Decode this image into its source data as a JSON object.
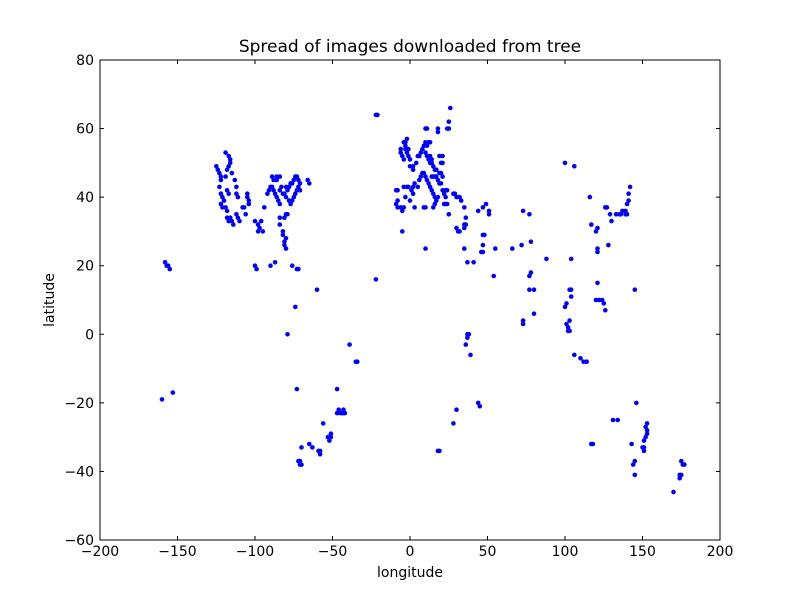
{
  "chart_data": {
    "type": "scatter",
    "title": "Spread of images downloaded from tree",
    "xlabel": "longitude",
    "ylabel": "latitude",
    "xlim": [
      -200,
      200
    ],
    "ylim": [
      -60,
      80
    ],
    "xticks": [
      -200,
      -150,
      -100,
      -50,
      0,
      50,
      100,
      150,
      200
    ],
    "yticks": [
      -60,
      -40,
      -20,
      0,
      20,
      40,
      60,
      80
    ],
    "grid": false,
    "marker_color": "#0000ff",
    "points": [
      [
        -125,
        49
      ],
      [
        -124,
        48
      ],
      [
        -123,
        47
      ],
      [
        -122,
        46
      ],
      [
        -122,
        45
      ],
      [
        -123,
        43
      ],
      [
        -122,
        41
      ],
      [
        -121,
        40
      ],
      [
        -122,
        38
      ],
      [
        -121,
        37
      ],
      [
        -120,
        39
      ],
      [
        -119,
        37
      ],
      [
        -118,
        36
      ],
      [
        -118,
        34
      ],
      [
        -117,
        33
      ],
      [
        -116,
        34
      ],
      [
        -117,
        41
      ],
      [
        -118,
        42
      ],
      [
        -119,
        46
      ],
      [
        -118,
        48
      ],
      [
        -117,
        49
      ],
      [
        -116,
        50
      ],
      [
        -115,
        47
      ],
      [
        -113,
        45
      ],
      [
        -112,
        43
      ],
      [
        -112,
        41
      ],
      [
        -111,
        40
      ],
      [
        -112,
        35
      ],
      [
        -111,
        34
      ],
      [
        -110,
        33
      ],
      [
        -115,
        33
      ],
      [
        -114,
        32
      ],
      [
        -119,
        53
      ],
      [
        -117,
        52
      ],
      [
        -116,
        51
      ],
      [
        -108,
        37
      ],
      [
        -105,
        40
      ],
      [
        -105,
        41
      ],
      [
        -104,
        39
      ],
      [
        -104,
        38
      ],
      [
        -106,
        35
      ],
      [
        -107,
        37
      ],
      [
        -100,
        33
      ],
      [
        -98,
        32
      ],
      [
        -98,
        30
      ],
      [
        -97,
        31
      ],
      [
        -96,
        33
      ],
      [
        -95,
        30
      ],
      [
        -94,
        37
      ],
      [
        -92,
        41
      ],
      [
        -91,
        42
      ],
      [
        -90,
        43
      ],
      [
        -89,
        43
      ],
      [
        -88,
        42
      ],
      [
        -87,
        41
      ],
      [
        -86,
        40
      ],
      [
        -85,
        39
      ],
      [
        -84,
        38
      ],
      [
        -84,
        42
      ],
      [
        -83,
        43
      ],
      [
        -82,
        41
      ],
      [
        -81,
        41
      ],
      [
        -80,
        43
      ],
      [
        -80,
        40
      ],
      [
        -79,
        42
      ],
      [
        -78,
        43
      ],
      [
        -78,
        39
      ],
      [
        -77,
        38
      ],
      [
        -76,
        39
      ],
      [
        -75,
        40
      ],
      [
        -74,
        41
      ],
      [
        -73,
        42
      ],
      [
        -72,
        43
      ],
      [
        -71,
        42
      ],
      [
        -71,
        44
      ],
      [
        -72,
        45
      ],
      [
        -73,
        46
      ],
      [
        -74,
        46
      ],
      [
        -75,
        45
      ],
      [
        -76,
        44
      ],
      [
        -77,
        44
      ],
      [
        -86,
        45
      ],
      [
        -88,
        45
      ],
      [
        -89,
        46
      ],
      [
        -86,
        46
      ],
      [
        -84,
        46
      ],
      [
        -80,
        35
      ],
      [
        -79,
        35
      ],
      [
        -81,
        34
      ],
      [
        -84,
        34
      ],
      [
        -84,
        32
      ],
      [
        -82,
        30
      ],
      [
        -81,
        27
      ],
      [
        -81,
        26
      ],
      [
        -80,
        28
      ],
      [
        -80,
        25
      ],
      [
        -82,
        29
      ],
      [
        -72,
        19
      ],
      [
        -73,
        19
      ],
      [
        -76,
        20
      ],
      [
        -90,
        20
      ],
      [
        -87,
        21
      ],
      [
        -100,
        20
      ],
      [
        -99,
        19
      ],
      [
        -66,
        45
      ],
      [
        -65,
        44
      ],
      [
        -79,
        0
      ],
      [
        -74,
        8
      ],
      [
        -60,
        13
      ],
      [
        -158,
        21
      ],
      [
        -157,
        20
      ],
      [
        -156,
        20
      ],
      [
        -155,
        19
      ],
      [
        -153,
        -17
      ],
      [
        -160,
        -19
      ],
      [
        -73,
        -16
      ],
      [
        -70,
        -33
      ],
      [
        -72,
        -37
      ],
      [
        -71,
        -37
      ],
      [
        -71,
        -38
      ],
      [
        -70,
        -38
      ],
      [
        -65,
        -32
      ],
      [
        -63,
        -33
      ],
      [
        -59,
        -34
      ],
      [
        -58,
        -35
      ],
      [
        -58,
        -34
      ],
      [
        -56,
        -26
      ],
      [
        -53,
        -30
      ],
      [
        -52,
        -31
      ],
      [
        -51,
        -29
      ],
      [
        -51,
        -30
      ],
      [
        -47,
        -16
      ],
      [
        -47,
        -23
      ],
      [
        -46,
        -22
      ],
      [
        -45,
        -23
      ],
      [
        -44,
        -23
      ],
      [
        -43,
        -23
      ],
      [
        -43,
        -22
      ],
      [
        -42,
        -23
      ],
      [
        -39,
        -3
      ],
      [
        -35,
        -8
      ],
      [
        -34,
        -8
      ],
      [
        -22,
        16
      ],
      [
        -21,
        64
      ],
      [
        -9,
        38
      ],
      [
        -8,
        37
      ],
      [
        -6,
        37
      ],
      [
        -5,
        36
      ],
      [
        -4,
        37
      ],
      [
        -3,
        40
      ],
      [
        -4,
        43
      ],
      [
        -2,
        43
      ],
      [
        -1,
        43
      ],
      [
        -5,
        30
      ],
      [
        -8,
        39
      ],
      [
        -8,
        42
      ],
      [
        -9,
        42
      ],
      [
        0,
        39
      ],
      [
        1,
        42
      ],
      [
        2,
        41
      ],
      [
        2,
        43
      ],
      [
        3,
        44
      ],
      [
        5,
        43
      ],
      [
        6,
        45
      ],
      [
        7,
        46
      ],
      [
        8,
        47
      ],
      [
        9,
        47
      ],
      [
        10,
        46
      ],
      [
        11,
        45
      ],
      [
        12,
        44
      ],
      [
        13,
        43
      ],
      [
        14,
        42
      ],
      [
        15,
        41
      ],
      [
        16,
        40
      ],
      [
        16,
        38
      ],
      [
        15,
        37
      ],
      [
        17,
        39
      ],
      [
        18,
        40
      ],
      [
        -3,
        54
      ],
      [
        -2,
        53
      ],
      [
        -1,
        52
      ],
      [
        0,
        51
      ],
      [
        -4,
        51
      ],
      [
        -5,
        52
      ],
      [
        -6,
        53
      ],
      [
        -6,
        54
      ],
      [
        -4,
        56
      ],
      [
        -3,
        56
      ],
      [
        -2,
        57
      ],
      [
        -3,
        55
      ],
      [
        -1,
        54
      ],
      [
        0,
        49
      ],
      [
        2,
        49
      ],
      [
        2,
        48
      ],
      [
        4,
        50
      ],
      [
        5,
        52
      ],
      [
        6,
        52
      ],
      [
        7,
        53
      ],
      [
        8,
        54
      ],
      [
        9,
        55
      ],
      [
        10,
        56
      ],
      [
        11,
        55
      ],
      [
        12,
        56
      ],
      [
        10,
        53
      ],
      [
        11,
        52
      ],
      [
        12,
        51
      ],
      [
        13,
        52
      ],
      [
        14,
        51
      ],
      [
        13,
        50
      ],
      [
        14,
        50
      ],
      [
        15,
        49
      ],
      [
        16,
        48
      ],
      [
        17,
        48
      ],
      [
        19,
        47
      ],
      [
        20,
        47
      ],
      [
        21,
        46
      ],
      [
        21,
        50
      ],
      [
        20,
        50
      ],
      [
        19,
        52
      ],
      [
        21,
        52
      ],
      [
        14,
        46
      ],
      [
        15,
        46
      ],
      [
        16,
        46
      ],
      [
        17,
        46
      ],
      [
        18,
        45
      ],
      [
        19,
        44
      ],
      [
        20,
        44
      ],
      [
        21,
        42
      ],
      [
        22,
        41
      ],
      [
        23,
        42
      ],
      [
        24,
        42
      ],
      [
        23,
        38
      ],
      [
        22,
        38
      ],
      [
        24,
        38
      ],
      [
        25,
        35
      ],
      [
        23,
        40
      ],
      [
        10,
        60
      ],
      [
        11,
        60
      ],
      [
        13,
        56
      ],
      [
        18,
        59
      ],
      [
        18,
        60
      ],
      [
        24,
        60
      ],
      [
        25,
        60
      ],
      [
        25,
        62
      ],
      [
        26,
        66
      ],
      [
        -22,
        64
      ],
      [
        10,
        37
      ],
      [
        9,
        37
      ],
      [
        3,
        37
      ],
      [
        10,
        25
      ],
      [
        30,
        40
      ],
      [
        28,
        41
      ],
      [
        29,
        41
      ],
      [
        32,
        40
      ],
      [
        33,
        39
      ],
      [
        35,
        37
      ],
      [
        30,
        31
      ],
      [
        31,
        30
      ],
      [
        32,
        30
      ],
      [
        36,
        34
      ],
      [
        36,
        32
      ],
      [
        35,
        32
      ],
      [
        35,
        31
      ],
      [
        35,
        25
      ],
      [
        38,
        0
      ],
      [
        37,
        0
      ],
      [
        37,
        -1
      ],
      [
        36,
        -3
      ],
      [
        39,
        -6
      ],
      [
        30,
        -22
      ],
      [
        28,
        -26
      ],
      [
        18,
        -34
      ],
      [
        19,
        -34
      ],
      [
        44,
        -20
      ],
      [
        45,
        -21
      ],
      [
        37,
        21
      ],
      [
        41,
        21
      ],
      [
        44,
        36
      ],
      [
        47,
        37
      ],
      [
        51,
        35
      ],
      [
        51,
        36
      ],
      [
        49,
        38
      ],
      [
        47,
        29
      ],
      [
        48,
        29
      ],
      [
        47,
        26
      ],
      [
        46,
        24
      ],
      [
        47,
        24
      ],
      [
        55,
        25
      ],
      [
        54,
        17
      ],
      [
        66,
        25
      ],
      [
        72,
        26
      ],
      [
        73,
        36
      ],
      [
        77,
        35
      ],
      [
        73,
        3
      ],
      [
        73,
        4
      ],
      [
        77,
        13
      ],
      [
        77,
        17
      ],
      [
        78,
        18
      ],
      [
        78,
        27
      ],
      [
        80,
        13
      ],
      [
        80,
        6
      ],
      [
        88,
        22
      ],
      [
        100,
        8
      ],
      [
        101,
        9
      ],
      [
        101,
        3
      ],
      [
        102,
        1
      ],
      [
        102,
        2
      ],
      [
        103,
        1
      ],
      [
        103,
        4
      ],
      [
        104,
        11
      ],
      [
        104,
        13
      ],
      [
        103,
        13
      ],
      [
        104,
        22
      ],
      [
        100,
        50
      ],
      [
        106,
        49
      ],
      [
        106,
        -6
      ],
      [
        110,
        -7
      ],
      [
        112,
        -8
      ],
      [
        114,
        -8
      ],
      [
        117,
        -32
      ],
      [
        118,
        -32
      ],
      [
        117,
        32
      ],
      [
        116,
        40
      ],
      [
        120,
        30
      ],
      [
        121,
        31
      ],
      [
        121,
        25
      ],
      [
        121,
        24
      ],
      [
        121,
        15
      ],
      [
        120,
        10
      ],
      [
        122,
        10
      ],
      [
        124,
        10
      ],
      [
        126,
        7
      ],
      [
        125,
        9
      ],
      [
        126,
        37
      ],
      [
        127,
        37
      ],
      [
        128,
        26
      ],
      [
        129,
        35
      ],
      [
        130,
        33
      ],
      [
        133,
        35
      ],
      [
        135,
        35
      ],
      [
        136,
        35
      ],
      [
        137,
        36
      ],
      [
        139,
        36
      ],
      [
        139,
        35
      ],
      [
        140,
        35
      ],
      [
        140,
        38
      ],
      [
        141,
        39
      ],
      [
        141,
        41
      ],
      [
        142,
        43
      ],
      [
        143,
        -32
      ],
      [
        144,
        -38
      ],
      [
        145,
        -37
      ],
      [
        145,
        -41
      ],
      [
        146,
        -20
      ],
      [
        145,
        13
      ],
      [
        150,
        -33
      ],
      [
        151,
        -34
      ],
      [
        151,
        -33
      ],
      [
        152,
        -27
      ],
      [
        153,
        -28
      ],
      [
        153,
        -26
      ],
      [
        152,
        -30
      ],
      [
        151,
        -31
      ],
      [
        153,
        -29
      ],
      [
        131,
        -25
      ],
      [
        134,
        -25
      ],
      [
        170,
        -46
      ],
      [
        174,
        -41
      ],
      [
        175,
        -41
      ],
      [
        175,
        -37
      ],
      [
        176,
        -38
      ],
      [
        177,
        -38
      ],
      [
        174,
        -42
      ]
    ]
  }
}
